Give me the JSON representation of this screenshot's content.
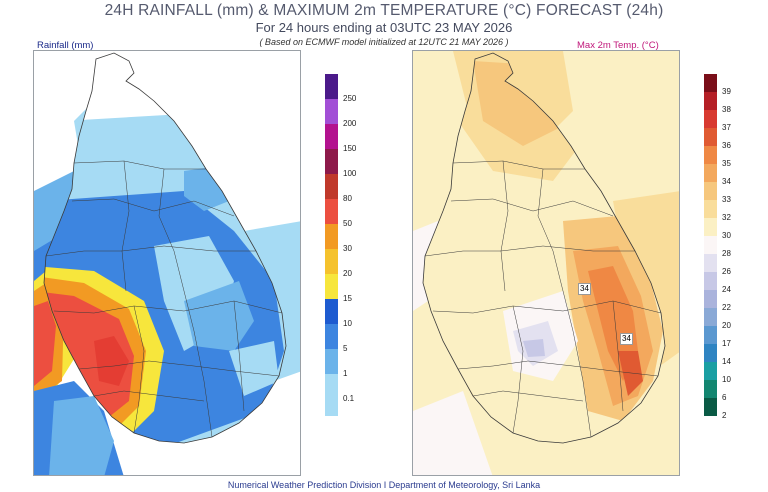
{
  "header": {
    "title": "24H RAINFALL (mm) & MAXIMUM 2m TEMPERATURE (°C) FORECAST (24h)",
    "subtitle": "For 24 hours ending at 03UTC 23 MAY 2026",
    "note": "( Based on ECMWF model initialized at 12UTC 21 MAY 2026 )"
  },
  "rain_panel": {
    "label": "Rainfall (mm)",
    "legend": {
      "levels": [
        "0.1",
        "1",
        "5",
        "10",
        "15",
        "20",
        "30",
        "50",
        "80",
        "100",
        "150",
        "200",
        "250"
      ],
      "colors": [
        "#a6dbf4",
        "#6bb3ea",
        "#3d85e0",
        "#1e5bd0",
        "#f7e63c",
        "#f5c22d",
        "#f29a23",
        "#ec4f40",
        "#c0392b",
        "#8e1a4a",
        "#b3128f",
        "#a24fd6",
        "#4b1a8a"
      ]
    }
  },
  "temp_panel": {
    "label": "Max 2m Temp. (°C)",
    "contour_labels": [
      "34",
      "34"
    ],
    "legend": {
      "levels": [
        "2",
        "6",
        "10",
        "14",
        "17",
        "20",
        "22",
        "24",
        "26",
        "28",
        "30",
        "32",
        "33",
        "34",
        "35",
        "36",
        "37",
        "38",
        "39"
      ],
      "colors": [
        "#0a5a45",
        "#138670",
        "#1a9fa3",
        "#2f84c2",
        "#5b98d0",
        "#8aa9d6",
        "#aab3dc",
        "#c7c8e6",
        "#e3e1f0",
        "#fbf6f6",
        "#fbf0c4",
        "#f9dd9b",
        "#f6c77d",
        "#f3a85d",
        "#ef8844",
        "#e05a32",
        "#d83a30",
        "#b51f26",
        "#7a0e19"
      ]
    }
  },
  "footer": "Numerical Weather Prediction Division I Department of Meteorology, Sri Lanka"
}
